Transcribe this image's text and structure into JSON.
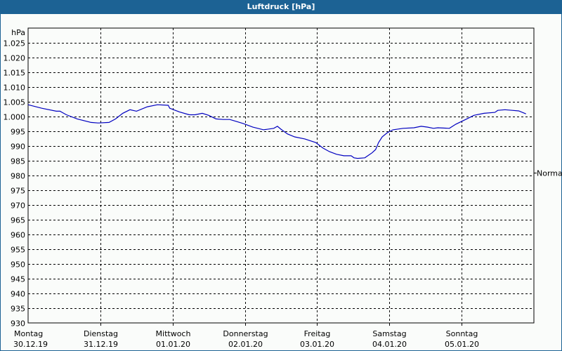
{
  "window": {
    "title": "Luftdruck [hPa]"
  },
  "colors": {
    "titlebar": "#1c6294",
    "line": "#0000c0",
    "grid": "#000000",
    "background": "#fafcfa"
  },
  "chart_data": {
    "type": "line",
    "title": "Luftdruck [hPa]",
    "ylabel": "hPa",
    "xlabel": "",
    "ylim": [
      930,
      1030
    ],
    "yticks": [
      930,
      935,
      940,
      945,
      950,
      955,
      960,
      965,
      970,
      975,
      980,
      985,
      990,
      995,
      1000,
      1005,
      1010,
      1015,
      1020,
      1025
    ],
    "ytick_labels": [
      "930",
      "935",
      "940",
      "945",
      "950",
      "955",
      "960",
      "965",
      "970",
      "975",
      "980",
      "985",
      "990",
      "995",
      "1.000",
      "1.005",
      "1.010",
      "1.015",
      "1.020",
      "1.025"
    ],
    "grid": true,
    "categories": [
      {
        "day": "Montag",
        "date": "30.12.19"
      },
      {
        "day": "Dienstag",
        "date": "31.12.19"
      },
      {
        "day": "Mittwoch",
        "date": "01.01.20"
      },
      {
        "day": "Donnerstag",
        "date": "02.01.20"
      },
      {
        "day": "Freitag",
        "date": "03.01.20"
      },
      {
        "day": "Samstag",
        "date": "04.01.20"
      },
      {
        "day": "Sonntag",
        "date": "05.01.20"
      }
    ],
    "annotations": [
      {
        "label": "Normal",
        "value": 981
      }
    ],
    "series": [
      {
        "name": "Luftdruck",
        "x_unit": "days since Montag 30.12.19 00:00",
        "x": [
          0,
          0.19,
          0.39,
          0.44,
          0.53,
          0.68,
          0.87,
          0.97,
          1.12,
          1.21,
          1.31,
          1.41,
          1.5,
          1.65,
          1.79,
          1.94,
          1.96,
          2.09,
          2.23,
          2.31,
          2.41,
          2.5,
          2.6,
          2.7,
          2.79,
          2.86,
          2.98,
          3.11,
          3.26,
          3.4,
          3.45,
          3.5,
          3.59,
          3.69,
          3.83,
          3.98,
          4.08,
          4.17,
          4.27,
          4.37,
          4.47,
          4.51,
          4.56,
          4.66,
          4.76,
          4.81,
          4.85,
          4.9,
          4.97,
          5.05,
          5.19,
          5.34,
          5.44,
          5.53,
          5.61,
          5.67,
          5.83,
          5.92,
          6.08,
          6.17,
          6.31,
          6.46,
          6.5,
          6.6,
          6.7,
          6.79,
          6.89
        ],
        "values": [
          1004.0,
          1002.8,
          1001.8,
          1001.8,
          1000.6,
          999.2,
          998.0,
          997.8,
          998.0,
          999.2,
          1001.1,
          1002.3,
          1001.8,
          1003.3,
          1004.0,
          1003.8,
          1002.8,
          1001.6,
          1000.6,
          1000.6,
          1001.1,
          1000.4,
          999.2,
          999.0,
          999.0,
          998.5,
          997.6,
          996.4,
          995.5,
          996.0,
          996.7,
          995.7,
          994.1,
          993.1,
          992.4,
          991.2,
          989.3,
          988.1,
          987.2,
          986.7,
          986.7,
          986.0,
          985.8,
          986.0,
          987.7,
          988.8,
          991.2,
          993.1,
          994.5,
          995.5,
          996.0,
          996.2,
          996.7,
          996.4,
          996.0,
          996.2,
          996.0,
          997.4,
          999.3,
          1000.4,
          1001.1,
          1001.4,
          1002.1,
          1002.3,
          1002.1,
          1001.9,
          1000.9
        ]
      }
    ]
  }
}
